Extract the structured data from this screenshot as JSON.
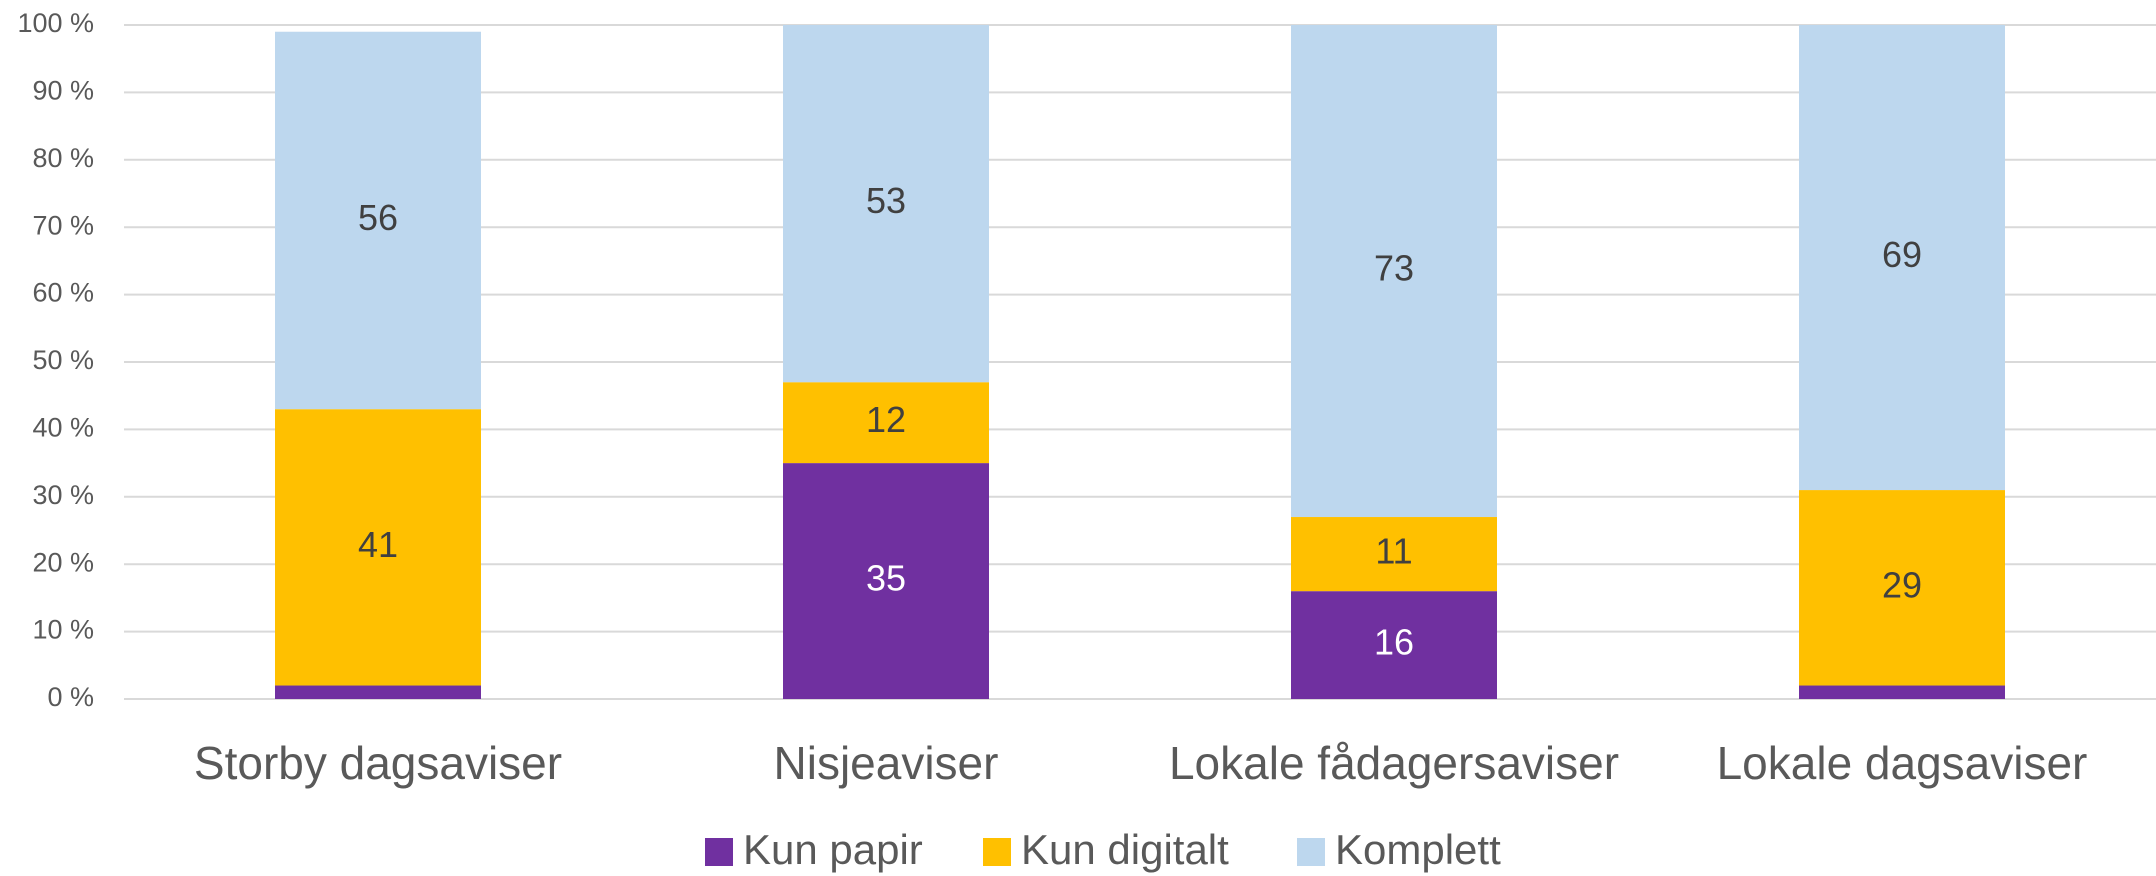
{
  "chart_data": {
    "type": "stacked_bar",
    "categories": [
      "Storby dagsaviser",
      "Nisjeaviser",
      "Lokale fådagersaviser",
      "Lokale dagsaviser"
    ],
    "series": [
      {
        "name": "Kun papir",
        "color": "#7030a0",
        "label_color": "#ffffff",
        "values": [
          2,
          35,
          16,
          2
        ]
      },
      {
        "name": "Kun digitalt",
        "color": "#ffc000",
        "label_color": "#404040",
        "values": [
          41,
          12,
          11,
          29
        ]
      },
      {
        "name": "Komplett",
        "color": "#bdd7ee",
        "label_color": "#404040",
        "values": [
          56,
          53,
          73,
          69
        ]
      }
    ],
    "ylim": [
      0,
      100
    ],
    "yticks": [
      {
        "value": 0,
        "label": "0 %"
      },
      {
        "value": 10,
        "label": "10 %"
      },
      {
        "value": 20,
        "label": "20 %"
      },
      {
        "value": 30,
        "label": "30 %"
      },
      {
        "value": 40,
        "label": "40 %"
      },
      {
        "value": 50,
        "label": "50 %"
      },
      {
        "value": 60,
        "label": "60 %"
      },
      {
        "value": 70,
        "label": "70 %"
      },
      {
        "value": 80,
        "label": "80 %"
      },
      {
        "value": 90,
        "label": "90 %"
      },
      {
        "value": 100,
        "label": "100 %"
      }
    ],
    "grid": true,
    "legend": "bottom"
  }
}
